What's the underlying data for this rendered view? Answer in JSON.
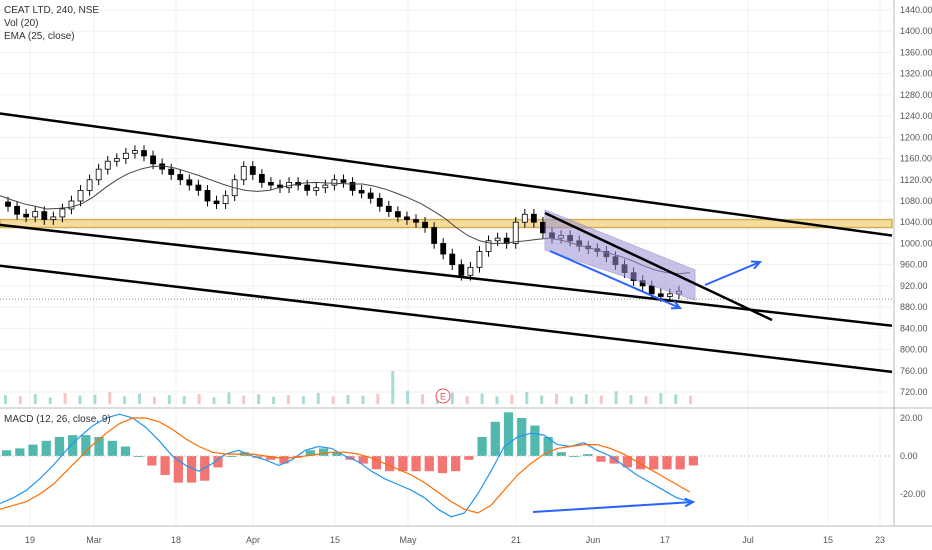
{
  "legend": {
    "symbol_line": "CEAT LTD, 240, NSE",
    "vol_line": "Vol (20)",
    "ema_line": "EMA (25, close)",
    "macd_line": "MACD (12, 26, close, 9)"
  },
  "earnings_marker": "E",
  "colors": {
    "up_candle": "#26a69a",
    "down_candle": "#000000",
    "support_zone_fill": "#f6d88a",
    "support_zone_border": "#c9a13b",
    "wedge_fill": "#9c92d6",
    "annotation_blue": "#2962ff",
    "ema": "#444444",
    "macd_line": "#2196f3",
    "signal_line": "#ff6d00",
    "hist_pos": "#26a69a",
    "hist_neg": "#ef5350"
  },
  "chart_data": [
    {
      "type": "candlestick",
      "title": "CEAT LTD, 240, NSE",
      "x_tick_labels": [
        "19",
        "Mar",
        "18",
        "Apr",
        "15",
        "May",
        "21",
        "Jun",
        "17",
        "Jul",
        "15",
        "23"
      ],
      "y_tick_labels": [
        "1440.00",
        "1400.00",
        "1360.00",
        "1320.00",
        "1280.00",
        "1240.00",
        "1200.00",
        "1160.00",
        "1120.00",
        "1080.00",
        "1040.00",
        "1000.00",
        "960.00",
        "920.00",
        "880.00",
        "840.00",
        "800.00",
        "760.00",
        "720.00"
      ],
      "ylim": [
        700,
        1460
      ],
      "price_path": [
        1070,
        1055,
        1050,
        1060,
        1045,
        1050,
        1065,
        1080,
        1100,
        1120,
        1140,
        1155,
        1160,
        1170,
        1175,
        1165,
        1150,
        1140,
        1130,
        1120,
        1110,
        1100,
        1080,
        1075,
        1090,
        1120,
        1145,
        1130,
        1115,
        1110,
        1105,
        1115,
        1110,
        1100,
        1105,
        1110,
        1120,
        1115,
        1100,
        1095,
        1085,
        1070,
        1060,
        1050,
        1045,
        1040,
        1030,
        1000,
        980,
        960,
        940,
        955,
        985,
        1005,
        1010,
        1000,
        1040,
        1055,
        1040,
        1020,
        1010,
        1015,
        1005,
        995,
        990,
        985,
        975,
        960,
        945,
        930,
        920,
        905,
        900,
        905,
        910
      ],
      "ema_path": [
        1090,
        1082,
        1075,
        1070,
        1065,
        1066,
        1068,
        1075,
        1088,
        1105,
        1120,
        1132,
        1140,
        1145,
        1146,
        1142,
        1135,
        1128,
        1120,
        1112,
        1105,
        1100,
        1098,
        1100,
        1106,
        1110,
        1114,
        1115,
        1114,
        1113,
        1112,
        1112,
        1108,
        1102,
        1094,
        1085,
        1075,
        1062,
        1048,
        1030,
        1015,
        1005,
        1000,
        1000,
        1003,
        1005,
        1008,
        1010,
        1006,
        1000,
        994,
        988,
        982,
        976,
        968,
        958,
        950,
        945,
        943,
        945
      ],
      "volume_path": [
        40,
        35,
        45,
        30,
        50,
        38,
        42,
        55,
        35,
        48,
        33,
        40,
        36,
        45,
        30,
        52,
        38,
        44,
        33,
        40,
        36,
        50,
        34,
        41,
        37,
        46,
        150,
        60,
        44,
        38,
        52,
        36,
        48,
        35,
        42,
        55,
        39,
        47,
        33,
        45,
        38,
        58,
        40,
        36,
        50,
        44,
        37
      ],
      "horizontal_zone": {
        "from": 1030,
        "to": 1045
      },
      "last_price_line": 895,
      "channel_lines": [
        {
          "name": "upper",
          "from": [
            0,
            1245
          ],
          "to": [
            1,
            1015
          ]
        },
        {
          "name": "middle",
          "from": [
            0,
            1035
          ],
          "to": [
            1,
            845
          ]
        },
        {
          "name": "lower",
          "from": [
            0,
            958
          ],
          "to": [
            1,
            758
          ]
        }
      ]
    },
    {
      "type": "line",
      "title": "MACD (12, 26, close, 9)",
      "y_tick_labels": [
        "20.00",
        "0.00",
        "-20.00"
      ],
      "ylim": [
        -40,
        25
      ],
      "series": [
        {
          "name": "MACD",
          "values": [
            -25,
            -22,
            -18,
            -12,
            -5,
            3,
            10,
            16,
            20,
            22,
            20,
            15,
            8,
            0,
            -5,
            -8,
            -4,
            1,
            3,
            0,
            -2,
            -5,
            -2,
            3,
            5,
            4,
            0,
            -3,
            -8,
            -12,
            -15,
            -18,
            -22,
            -28,
            -32,
            -30,
            -20,
            -8,
            5,
            10,
            12,
            11,
            6,
            5,
            7,
            3,
            0,
            -5,
            -10,
            -14,
            -18,
            -22,
            -24
          ]
        },
        {
          "name": "Signal",
          "values": [
            -28,
            -26,
            -24,
            -20,
            -15,
            -8,
            -1,
            6,
            12,
            17,
            20,
            20,
            18,
            14,
            9,
            5,
            2,
            1,
            1,
            1,
            0,
            -1,
            -1,
            0,
            1,
            2,
            2,
            1,
            -1,
            -4,
            -7,
            -10,
            -14,
            -19,
            -24,
            -28,
            -30,
            -26,
            -18,
            -10,
            -4,
            1,
            4,
            5,
            6,
            6,
            4,
            1,
            -3,
            -7,
            -11,
            -15,
            -19
          ]
        },
        {
          "name": "Histogram",
          "values": [
            3,
            4,
            6,
            8,
            10,
            11,
            11,
            10,
            8,
            5,
            0,
            -5,
            -10,
            -14,
            -14,
            -13,
            -6,
            0,
            2,
            -1,
            -2,
            -4,
            -1,
            3,
            4,
            2,
            -2,
            -4,
            -7,
            -8,
            -8,
            -8,
            -8,
            -9,
            -8,
            -2,
            10,
            18,
            23,
            20,
            16,
            10,
            2,
            0,
            1,
            -3,
            -4,
            -6,
            -7,
            -7,
            -7,
            -7,
            -5
          ]
        }
      ]
    }
  ]
}
